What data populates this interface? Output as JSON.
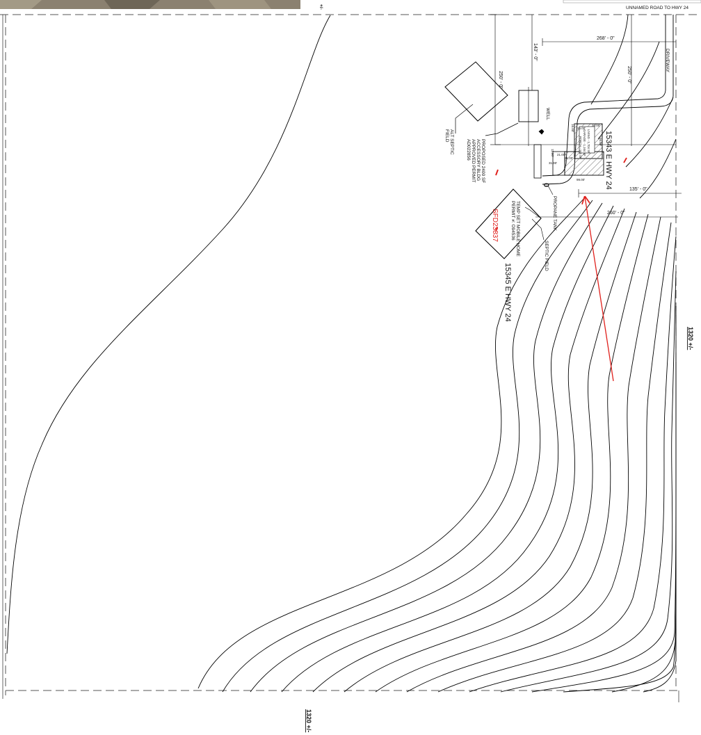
{
  "road_label": "UNNAMED ROAD TO HWY 24",
  "driveway_label": "DRIVEWAY",
  "top_edge_mark": "+/-",
  "dimensions": {
    "d268": "268' - 0\"",
    "d250_right": "250' - 0\"",
    "d143": "143' - 0\"",
    "d250_left": "250' - 0\"",
    "d135": "135' - 0\"",
    "d260": "260' - 0\""
  },
  "labels": {
    "well": "WELL",
    "alt_septic": [
      "ALT SEPTIC",
      "FIELD"
    ],
    "proposed_bldg": [
      "PROPOSED 2400 SF",
      "ACCESSORY BLDG",
      "APPROVED PERMIT",
      "AD022856"
    ],
    "propane": "PROPANE TANK",
    "septic": "SEPTIC FIELD",
    "mobile_home": [
      "TEMP SET MOBILE HOME",
      "PERMIT #: O94536"
    ],
    "permit_red": "SFD23837",
    "address_main": "15343 E HWY 24",
    "address_mobile": "15345 E HWY 24",
    "propane_zero": "0"
  },
  "house_dims": {
    "w16": "16.00'",
    "w20": "20.00'",
    "h36": "36.00'",
    "h16": "16.00'",
    "w21a": "21.00'",
    "w21b": "21.00'",
    "h11": "11.00'",
    "h31": "31.00'",
    "w99": "99.00'",
    "living": "LIVING - 1,704 SF",
    "garage": "GARAGE - 1,164 SF",
    "porch": "PORCH - 164 SF"
  },
  "boundary": {
    "right": "1320 +/-",
    "bottom": "1320 +/-"
  },
  "colors": {
    "ink": "#000000",
    "dashed": "#555555",
    "hatch": "#777777",
    "annotation_red": "#e0201c",
    "photo": "#8b8170"
  }
}
